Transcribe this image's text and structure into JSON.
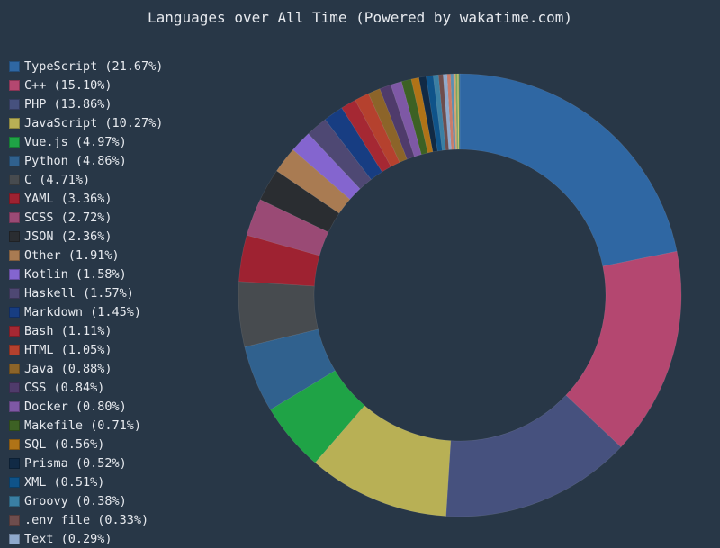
{
  "chart_data": {
    "type": "pie",
    "variant": "donut",
    "title": "Languages over All Time (Powered by wakatime.com)",
    "legend_position": "left",
    "slices": [
      {
        "label": "TypeScript (21.67%)",
        "name": "TypeScript",
        "value": 21.67,
        "color": "#2f67a3"
      },
      {
        "label": "C++ (15.10%)",
        "name": "C++",
        "value": 15.1,
        "color": "#b44770"
      },
      {
        "label": "PHP (13.86%)",
        "name": "PHP",
        "value": 13.86,
        "color": "#46517e"
      },
      {
        "label": "JavaScript (10.27%)",
        "name": "JavaScript",
        "value": 10.27,
        "color": "#b8b055"
      },
      {
        "label": "Vue.js (4.97%)",
        "name": "Vue.js",
        "value": 4.97,
        "color": "#1fa346"
      },
      {
        "label": "Python (4.86%)",
        "name": "Python",
        "value": 4.86,
        "color": "#30618e"
      },
      {
        "label": "C (4.71%)",
        "name": "C",
        "value": 4.71,
        "color": "#474b4f"
      },
      {
        "label": "YAML (3.36%)",
        "name": "YAML",
        "value": 3.36,
        "color": "#9e2231"
      },
      {
        "label": "SCSS (2.72%)",
        "name": "SCSS",
        "value": 2.72,
        "color": "#9a4a75"
      },
      {
        "label": "JSON (2.36%)",
        "name": "JSON",
        "value": 2.36,
        "color": "#2a2d31"
      },
      {
        "label": "Other (1.91%)",
        "name": "Other",
        "value": 1.91,
        "color": "#a97b52"
      },
      {
        "label": "Kotlin (1.58%)",
        "name": "Kotlin",
        "value": 1.58,
        "color": "#8465cf"
      },
      {
        "label": "Haskell (1.57%)",
        "name": "Haskell",
        "value": 1.57,
        "color": "#4e4873"
      },
      {
        "label": "Markdown (1.45%)",
        "name": "Markdown",
        "value": 1.45,
        "color": "#173d82"
      },
      {
        "label": "Bash (1.11%)",
        "name": "Bash",
        "value": 1.11,
        "color": "#a52833"
      },
      {
        "label": "HTML (1.05%)",
        "name": "HTML",
        "value": 1.05,
        "color": "#b5412e"
      },
      {
        "label": "Java (0.88%)",
        "name": "Java",
        "value": 0.88,
        "color": "#8c6429"
      },
      {
        "label": "CSS (0.84%)",
        "name": "CSS",
        "value": 0.84,
        "color": "#4f3b6b"
      },
      {
        "label": "Docker (0.80%)",
        "name": "Docker",
        "value": 0.8,
        "color": "#7e58a5"
      },
      {
        "label": "Makefile (0.71%)",
        "name": "Makefile",
        "value": 0.71,
        "color": "#3d6124"
      },
      {
        "label": "SQL (0.56%)",
        "name": "SQL",
        "value": 0.56,
        "color": "#b07317"
      },
      {
        "label": "Prisma (0.52%)",
        "name": "Prisma",
        "value": 0.52,
        "color": "#112a45"
      },
      {
        "label": "XML (0.51%)",
        "name": "XML",
        "value": 0.51,
        "color": "#0f5389"
      },
      {
        "label": "Groovy (0.38%)",
        "name": "Groovy",
        "value": 0.38,
        "color": "#3a7fa3"
      },
      {
        "label": ".env file (0.33%)",
        "name": ".env file",
        "value": 0.33,
        "color": "#6e4d4d"
      },
      {
        "label": "Text (0.29%)",
        "name": "Text",
        "value": 0.29,
        "color": "#8fa9cc"
      },
      {
        "label": "",
        "name": "",
        "value": 0.25,
        "color": "#c97b6a"
      },
      {
        "label": "",
        "name": "",
        "value": 0.2,
        "color": "#5c8fb0"
      },
      {
        "label": "",
        "name": "",
        "value": 0.16,
        "color": "#d4a373"
      },
      {
        "label": "",
        "name": "",
        "value": 0.12,
        "color": "#7aa85c"
      },
      {
        "label": "",
        "name": "",
        "value": 0.1,
        "color": "#c9c261"
      },
      {
        "label": "",
        "name": "",
        "value": 0.08,
        "color": "#3f7a6a"
      }
    ]
  }
}
